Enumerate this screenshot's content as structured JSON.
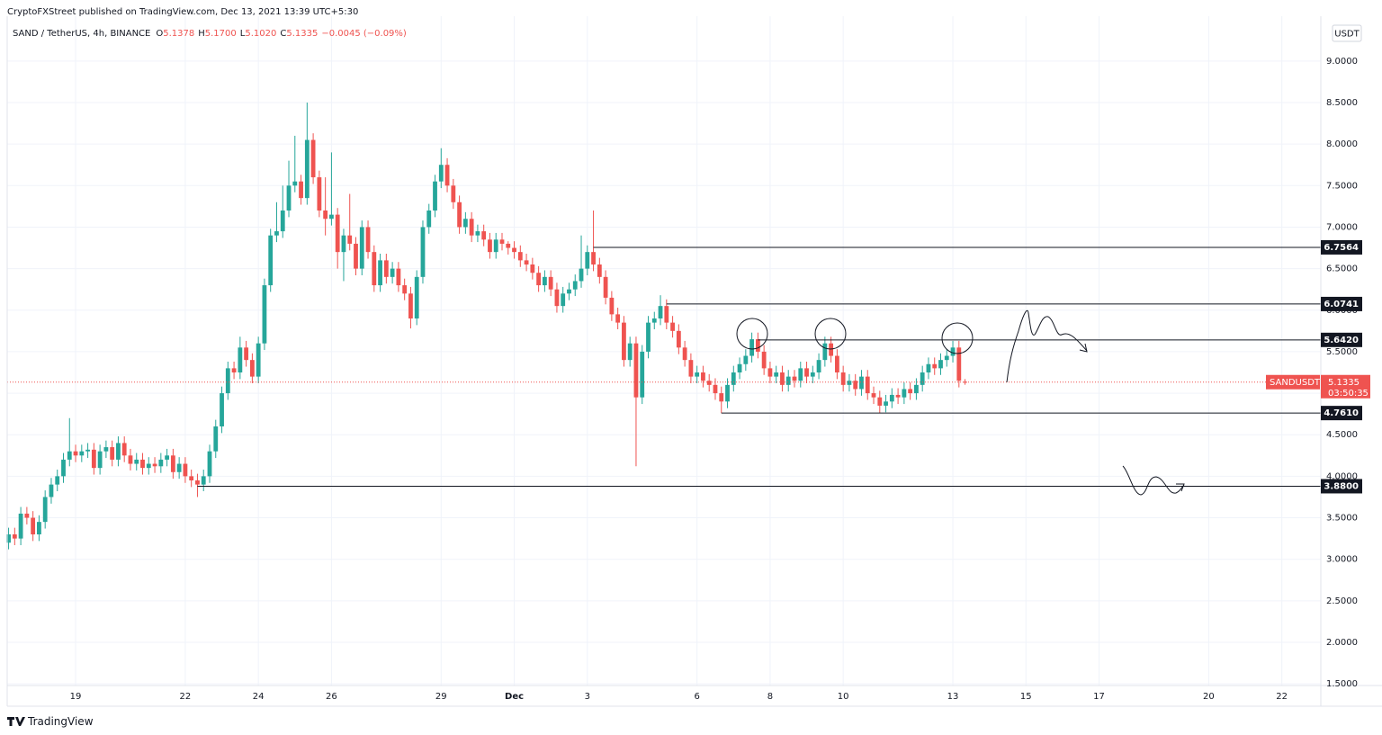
{
  "chart_data": {
    "type": "candlestick",
    "published": "CryptoFXStreet published on TradingView.com, Dec 13, 2021 13:39 UTC+5:30",
    "symbol": "SAND / TetherUS, 4h, BINANCE",
    "ohlc": [
      {
        "label": "O",
        "value": "5.1378"
      },
      {
        "label": "H",
        "value": "5.1700"
      },
      {
        "label": "L",
        "value": "5.1020"
      },
      {
        "label": "C",
        "value": "5.1335"
      }
    ],
    "change": "−0.0045 (−0.09%)",
    "currency": "USDT",
    "watermark": "TradingView",
    "up_color": "#26a69a",
    "down_color": "#ef5350",
    "grid": true,
    "ylim": [
      1.48,
      9.54
    ],
    "yticks": [
      {
        "value": 1.5,
        "label": "1.5000"
      },
      {
        "value": 2,
        "label": "2.0000"
      },
      {
        "value": 2.5,
        "label": "2.5000"
      },
      {
        "value": 3,
        "label": "3.0000"
      },
      {
        "value": 3.5,
        "label": "3.5000"
      },
      {
        "value": 4,
        "label": "4.0000"
      },
      {
        "value": 4.5,
        "label": "4.5000"
      },
      {
        "value": 5,
        "label": "5.0000"
      },
      {
        "value": 5.5,
        "label": "5.5000"
      },
      {
        "value": 6,
        "label": "6.0000"
      },
      {
        "value": 6.5,
        "label": "6.5000"
      },
      {
        "value": 7,
        "label": "7.0000"
      },
      {
        "value": 7.5,
        "label": "7.5000"
      },
      {
        "value": 8,
        "label": "8.0000"
      },
      {
        "value": 8.5,
        "label": "8.5000"
      },
      {
        "value": 9,
        "label": "9.0000"
      }
    ],
    "xlim": [
      -0.23,
      215.4
    ],
    "xticks": [
      {
        "value": 11,
        "label": "19"
      },
      {
        "value": 29,
        "label": "22"
      },
      {
        "value": 41,
        "label": "24"
      },
      {
        "value": 53,
        "label": "26"
      },
      {
        "value": 71,
        "label": "29"
      },
      {
        "value": 83,
        "label": "Dec"
      },
      {
        "value": 95,
        "label": "3"
      },
      {
        "value": 113,
        "label": "6"
      },
      {
        "value": 125,
        "label": "8"
      },
      {
        "value": 137,
        "label": "10"
      },
      {
        "value": 155,
        "label": "13"
      },
      {
        "value": 167,
        "label": "15"
      },
      {
        "value": 179,
        "label": "17"
      },
      {
        "value": 197,
        "label": "20"
      },
      {
        "value": 209,
        "label": "22"
      }
    ],
    "open": [
      3.2,
      3.3,
      3.25,
      3.55,
      3.5,
      3.3,
      3.45,
      3.75,
      3.9,
      4.0,
      4.2,
      4.3,
      4.25,
      4.3,
      4.32,
      4.1,
      4.3,
      4.35,
      4.2,
      4.4,
      4.25,
      4.15,
      4.2,
      4.1,
      4.15,
      4.12,
      4.2,
      4.25,
      4.05,
      4.15,
      4.0,
      3.95,
      3.9,
      4.0,
      4.3,
      4.6,
      5.0,
      5.3,
      5.25,
      5.55,
      5.4,
      5.2,
      5.6,
      6.3,
      6.9,
      6.95,
      7.2,
      7.5,
      7.55,
      7.35,
      8.05,
      7.6,
      7.2,
      7.1,
      7.15,
      6.7,
      6.9,
      6.8,
      6.5,
      7.0,
      6.7,
      6.3,
      6.6,
      6.4,
      6.5,
      6.3,
      6.2,
      5.9,
      6.4,
      7.0,
      7.2,
      7.55,
      7.75,
      7.5,
      7.3,
      7.0,
      7.1,
      6.9,
      6.95,
      6.85,
      6.7,
      6.85,
      6.8,
      6.75,
      6.7,
      6.6,
      6.55,
      6.45,
      6.3,
      6.4,
      6.25,
      6.05,
      6.2,
      6.25,
      6.35,
      6.5,
      6.7,
      6.55,
      6.4,
      6.15,
      5.95,
      5.85,
      5.4,
      5.6,
      4.95,
      5.5,
      5.85,
      5.9,
      6.05,
      5.85,
      5.75,
      5.55,
      5.4,
      5.2,
      5.25,
      5.15,
      5.1,
      5.0,
      4.9,
      5.1,
      5.25,
      5.35,
      5.45,
      5.65,
      5.5,
      5.3,
      5.2,
      5.25,
      5.1,
      5.2,
      5.15,
      5.3,
      5.2,
      5.25,
      5.4,
      5.6,
      5.45,
      5.25,
      5.1,
      5.15,
      5.05,
      5.2,
      5.0,
      4.95,
      4.85,
      4.9,
      4.98,
      4.95,
      5.05,
      5.0,
      5.1,
      5.25,
      5.35,
      5.3,
      5.4,
      5.45,
      5.55,
      5.1378
    ],
    "high": [
      3.38,
      3.38,
      3.63,
      3.63,
      3.58,
      3.53,
      3.83,
      3.98,
      4.08,
      4.28,
      4.7,
      4.38,
      4.38,
      4.4,
      4.4,
      4.38,
      4.43,
      4.43,
      4.48,
      4.48,
      4.33,
      4.28,
      4.28,
      4.23,
      4.23,
      4.28,
      4.33,
      4.33,
      4.23,
      4.23,
      4.08,
      4.03,
      4.08,
      4.38,
      4.68,
      5.08,
      5.38,
      5.38,
      5.68,
      5.63,
      5.48,
      5.68,
      6.38,
      6.98,
      7.3,
      7.5,
      7.8,
      8.1,
      7.63,
      8.5,
      8.13,
      7.68,
      7.6,
      7.9,
      7.23,
      6.98,
      7.4,
      6.88,
      7.08,
      7.08,
      6.78,
      6.68,
      6.68,
      6.58,
      6.58,
      6.38,
      6.28,
      6.48,
      7.08,
      7.28,
      7.63,
      7.95,
      7.83,
      7.58,
      7.38,
      7.18,
      7.18,
      7.03,
      7.03,
      6.93,
      6.93,
      6.93,
      6.83,
      6.83,
      6.78,
      6.68,
      6.63,
      6.53,
      6.48,
      6.48,
      6.33,
      6.28,
      6.33,
      6.43,
      6.9,
      6.78,
      7.2,
      6.63,
      6.48,
      6.23,
      6.03,
      5.93,
      5.68,
      5.68,
      5.58,
      5.93,
      5.98,
      6.18,
      6.13,
      5.93,
      5.83,
      5.63,
      5.48,
      5.33,
      5.33,
      5.23,
      5.18,
      5.08,
      5.18,
      5.33,
      5.43,
      5.53,
      5.73,
      5.73,
      5.58,
      5.38,
      5.33,
      5.33,
      5.28,
      5.28,
      5.38,
      5.38,
      5.33,
      5.48,
      5.68,
      5.68,
      5.53,
      5.33,
      5.23,
      5.23,
      5.28,
      5.28,
      5.08,
      5.03,
      4.98,
      5.06,
      5.06,
      5.13,
      5.13,
      5.18,
      5.33,
      5.43,
      5.43,
      5.48,
      5.53,
      5.63,
      5.63,
      5.17
    ],
    "low": [
      3.12,
      3.17,
      3.17,
      3.42,
      3.22,
      3.22,
      3.37,
      3.67,
      3.82,
      3.92,
      4.12,
      4.17,
      4.17,
      4.22,
      4.02,
      4.02,
      4.22,
      4.12,
      4.12,
      4.17,
      4.07,
      4.07,
      4.02,
      4.02,
      4.04,
      4.04,
      4.12,
      3.97,
      3.97,
      3.92,
      3.87,
      3.75,
      3.82,
      3.92,
      4.22,
      4.52,
      4.92,
      5.17,
      5.17,
      5.32,
      5.12,
      5.12,
      5.52,
      6.22,
      6.82,
      6.87,
      7.12,
      7.42,
      7.27,
      7.27,
      7.52,
      7.12,
      6.9,
      7.02,
      6.5,
      6.35,
      6.72,
      6.42,
      6.42,
      6.62,
      6.22,
      6.22,
      6.32,
      6.32,
      6.22,
      6.12,
      5.78,
      5.82,
      6.32,
      6.92,
      7.12,
      7.47,
      7.42,
      7.22,
      6.92,
      6.92,
      6.82,
      6.82,
      6.77,
      6.62,
      6.62,
      6.72,
      6.67,
      6.62,
      6.52,
      6.47,
      6.37,
      6.22,
      6.22,
      6.17,
      5.97,
      5.97,
      6.12,
      6.17,
      6.27,
      6.42,
      6.47,
      6.32,
      6.07,
      5.87,
      5.77,
      5.32,
      5.32,
      4.12,
      4.87,
      5.42,
      5.77,
      5.82,
      5.77,
      5.67,
      5.47,
      5.32,
      5.12,
      5.12,
      5.07,
      5.02,
      4.92,
      4.76,
      4.82,
      5.02,
      5.17,
      5.27,
      5.37,
      5.42,
      5.22,
      5.12,
      5.12,
      5.02,
      5.02,
      5.07,
      5.07,
      5.12,
      5.12,
      5.17,
      5.32,
      5.37,
      5.17,
      5.02,
      5.02,
      4.97,
      4.97,
      4.92,
      4.87,
      4.76,
      4.77,
      4.82,
      4.87,
      4.87,
      4.92,
      4.92,
      5.02,
      5.17,
      5.22,
      5.22,
      5.32,
      5.37,
      5.07,
      5.102
    ],
    "close": [
      3.3,
      3.25,
      3.55,
      3.5,
      3.3,
      3.45,
      3.75,
      3.9,
      4.0,
      4.2,
      4.3,
      4.25,
      4.3,
      4.32,
      4.1,
      4.3,
      4.35,
      4.2,
      4.4,
      4.25,
      4.15,
      4.2,
      4.1,
      4.15,
      4.12,
      4.2,
      4.25,
      4.05,
      4.15,
      4.0,
      3.95,
      3.9,
      4.0,
      4.3,
      4.6,
      5.0,
      5.3,
      5.25,
      5.55,
      5.4,
      5.2,
      5.6,
      6.3,
      6.9,
      6.95,
      7.2,
      7.5,
      7.55,
      7.35,
      8.05,
      7.6,
      7.2,
      7.1,
      7.15,
      6.7,
      6.9,
      6.8,
      6.5,
      7.0,
      6.7,
      6.3,
      6.6,
      6.4,
      6.5,
      6.3,
      6.2,
      5.9,
      6.4,
      7.0,
      7.2,
      7.55,
      7.75,
      7.5,
      7.3,
      7.0,
      7.1,
      6.9,
      6.95,
      6.85,
      6.7,
      6.85,
      6.8,
      6.75,
      6.7,
      6.6,
      6.55,
      6.45,
      6.3,
      6.4,
      6.25,
      6.05,
      6.2,
      6.25,
      6.35,
      6.5,
      6.7,
      6.55,
      6.4,
      6.15,
      5.95,
      5.85,
      5.4,
      5.6,
      4.95,
      5.5,
      5.85,
      5.9,
      6.05,
      5.85,
      5.75,
      5.55,
      5.4,
      5.2,
      5.25,
      5.15,
      5.1,
      5.0,
      4.9,
      5.1,
      5.25,
      5.35,
      5.45,
      5.65,
      5.5,
      5.3,
      5.2,
      5.25,
      5.1,
      5.2,
      5.15,
      5.3,
      5.2,
      5.25,
      5.4,
      5.6,
      5.45,
      5.25,
      5.1,
      5.15,
      5.05,
      5.2,
      5.0,
      4.95,
      4.85,
      4.9,
      4.98,
      4.95,
      5.05,
      5.0,
      5.1,
      5.25,
      5.35,
      5.3,
      5.4,
      5.45,
      5.55,
      5.15,
      5.1335
    ],
    "levels": [
      {
        "value": 6.7564,
        "start": 96
      },
      {
        "value": 6.0741,
        "start": 108
      },
      {
        "value": {
          "value": 5.642,
          "label": "5.6420"
        },
        "start": 123
      },
      {
        "value": {
          "value": 4.761,
          "label": "4.7610"
        },
        "start": 117
      },
      {
        "value": {
          "value": 3.88,
          "label": "3.8800"
        },
        "start": 31
      }
    ],
    "last_price": {
      "symbol": "SANDUSDT",
      "value": 5.1335,
      "countdown": "03:50:35"
    }
  }
}
